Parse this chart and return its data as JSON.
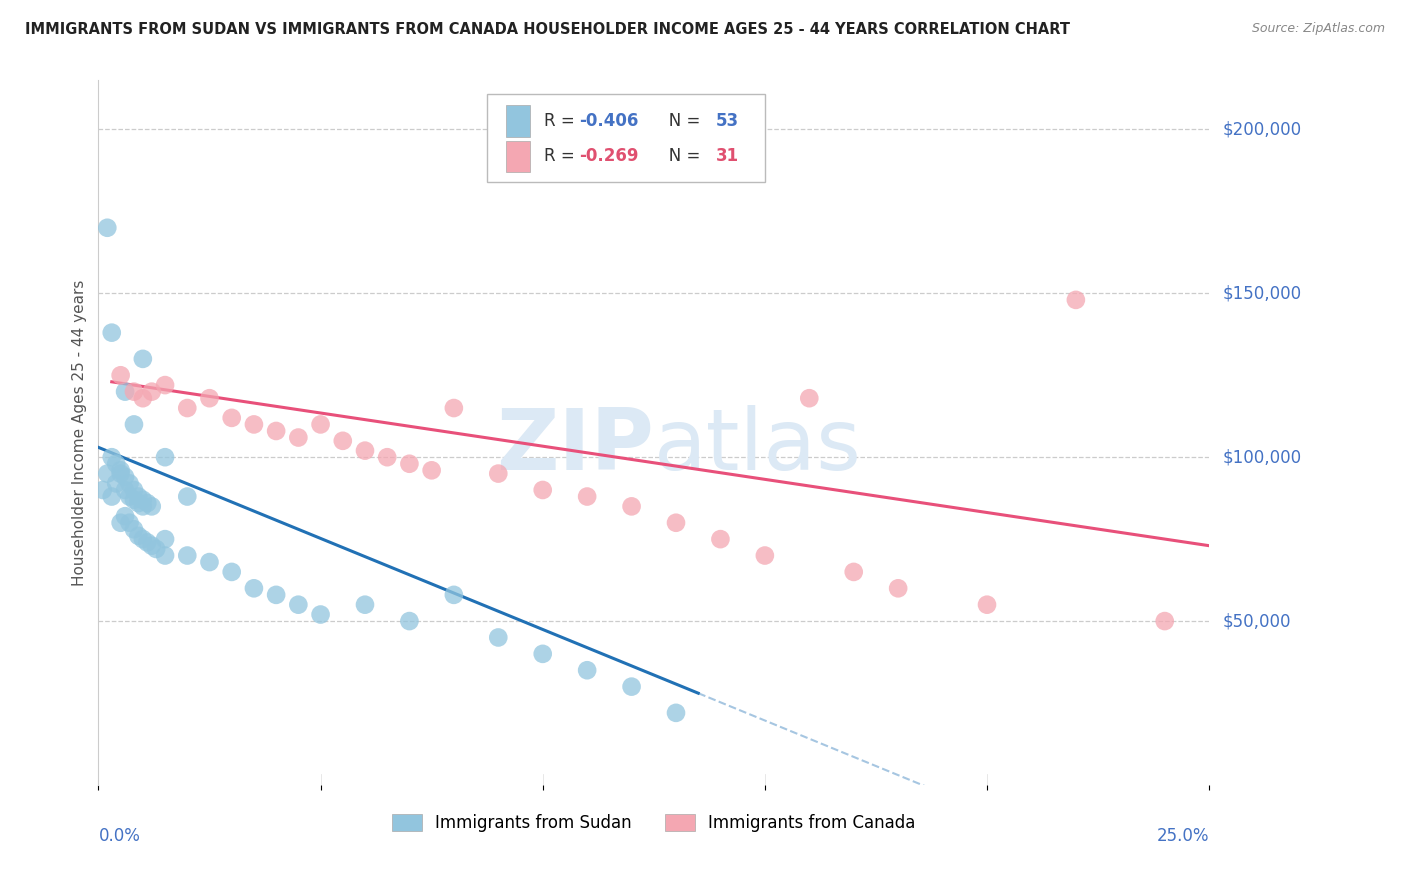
{
  "title": "IMMIGRANTS FROM SUDAN VS IMMIGRANTS FROM CANADA HOUSEHOLDER INCOME AGES 25 - 44 YEARS CORRELATION CHART",
  "source": "Source: ZipAtlas.com",
  "ylabel": "Householder Income Ages 25 - 44 years",
  "ytick_labels": [
    "$200,000",
    "$150,000",
    "$100,000",
    "$50,000"
  ],
  "ytick_values": [
    200000,
    150000,
    100000,
    50000
  ],
  "xlim": [
    0.0,
    25.0
  ],
  "ylim": [
    0,
    215000
  ],
  "legend_label1": "Immigrants from Sudan",
  "legend_label2": "Immigrants from Canada",
  "R1": -0.406,
  "N1": 53,
  "R2": -0.269,
  "N2": 31,
  "color_sudan": "#92c5de",
  "color_canada": "#f4a7b2",
  "color_line_sudan": "#2171b5",
  "color_line_canada": "#e8507a",
  "color_axis_labels": "#4472c4",
  "watermark_color": "#dce9f5",
  "sudan_x": [
    0.1,
    0.2,
    0.3,
    0.4,
    0.5,
    0.6,
    0.7,
    0.8,
    0.9,
    1.0,
    0.3,
    0.4,
    0.5,
    0.6,
    0.7,
    0.8,
    0.9,
    1.0,
    1.1,
    1.2,
    0.5,
    0.6,
    0.7,
    0.8,
    0.9,
    1.0,
    1.1,
    1.2,
    1.3,
    1.5,
    1.5,
    2.0,
    2.5,
    3.0,
    3.5,
    4.0,
    4.5,
    5.0,
    6.0,
    7.0,
    8.0,
    9.0,
    10.0,
    11.0,
    12.0,
    13.0,
    0.2,
    0.3,
    0.6,
    0.8,
    1.0,
    1.5,
    2.0
  ],
  "sudan_y": [
    90000,
    95000,
    88000,
    92000,
    95000,
    90000,
    88000,
    87000,
    86000,
    85000,
    100000,
    98000,
    96000,
    94000,
    92000,
    90000,
    88000,
    87000,
    86000,
    85000,
    80000,
    82000,
    80000,
    78000,
    76000,
    75000,
    74000,
    73000,
    72000,
    70000,
    75000,
    70000,
    68000,
    65000,
    60000,
    58000,
    55000,
    52000,
    55000,
    50000,
    58000,
    45000,
    40000,
    35000,
    30000,
    22000,
    170000,
    138000,
    120000,
    110000,
    130000,
    100000,
    88000
  ],
  "canada_x": [
    0.5,
    0.8,
    1.0,
    1.5,
    2.0,
    2.5,
    3.0,
    3.5,
    4.0,
    4.5,
    5.0,
    5.5,
    6.0,
    7.0,
    7.5,
    8.0,
    9.0,
    10.0,
    11.0,
    12.0,
    13.0,
    14.0,
    15.0,
    16.0,
    17.0,
    18.0,
    20.0,
    22.0,
    24.0,
    1.2,
    6.5
  ],
  "canada_y": [
    125000,
    120000,
    118000,
    122000,
    115000,
    118000,
    112000,
    110000,
    108000,
    106000,
    110000,
    105000,
    102000,
    98000,
    96000,
    115000,
    95000,
    90000,
    88000,
    85000,
    80000,
    75000,
    70000,
    118000,
    65000,
    60000,
    55000,
    148000,
    50000,
    120000,
    100000
  ],
  "line_sudan_x0": 0.0,
  "line_sudan_x1": 13.5,
  "line_sudan_dash_x1": 25.0,
  "line_canada_x0": 0.3,
  "line_canada_x1": 25.0,
  "line_sudan_y_at_0": 103000,
  "line_sudan_y_at_13": 28000,
  "line_canada_y_at_0": 123000,
  "line_canada_y_at_25": 73000
}
